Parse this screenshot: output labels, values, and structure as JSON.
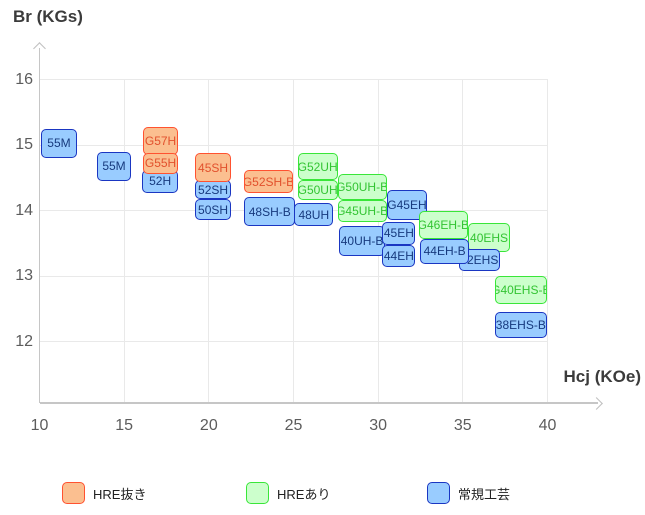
{
  "colors": {
    "hre_removed": {
      "fill": "#fbbf90",
      "border": "#ff5230",
      "text": "#e2512d"
    },
    "hre_added": {
      "fill": "#ccffcc",
      "border": "#39e639",
      "text": "#33c433"
    },
    "standard": {
      "fill": "#99ccff",
      "border": "#1a36c2",
      "text": "#173a7e"
    },
    "grid": "#e9e9e9",
    "axis": "#c6c6c6",
    "tick_text": "#5c5c5c",
    "title_text": "#3b3b3b"
  },
  "chart_data": {
    "type": "scatter",
    "title": "",
    "xlabel": "Hcj (KOe)",
    "ylabel": "Br (KGs)",
    "xlim": [
      10,
      43
    ],
    "ylim": [
      11,
      16.5
    ],
    "x_ticks": [
      10,
      15,
      20,
      25,
      30,
      35,
      40
    ],
    "y_ticks": [
      16,
      15,
      14,
      13,
      12
    ],
    "grid": true,
    "legend_position": "bottom",
    "legend": [
      {
        "group": "hre_removed",
        "label": "HRE抜き"
      },
      {
        "group": "hre_added",
        "label": "HREあり"
      },
      {
        "group": "standard",
        "label": "常規工芸"
      }
    ],
    "items": [
      {
        "label": "55M",
        "group": "standard",
        "hcj": [
          10.1,
          12.2
        ],
        "br": [
          14.8,
          15.25
        ]
      },
      {
        "label": "55M",
        "group": "standard",
        "hcj": [
          13.4,
          15.4
        ],
        "br": [
          14.45,
          14.9
        ]
      },
      {
        "label": "G57H",
        "group": "hre_removed",
        "hcj": [
          16.1,
          18.2
        ],
        "br": [
          14.85,
          15.28
        ]
      },
      {
        "label": "52H",
        "group": "standard",
        "hcj": [
          16.05,
          18.2
        ],
        "br": [
          14.27,
          14.62
        ]
      },
      {
        "label": "G55H",
        "group": "hre_removed",
        "hcj": [
          16.1,
          18.2
        ],
        "br": [
          14.56,
          14.88
        ]
      },
      {
        "label": "52SH",
        "group": "standard",
        "hcj": [
          19.2,
          21.3
        ],
        "br": [
          14.18,
          14.46
        ]
      },
      {
        "label": "50SH",
        "group": "standard",
        "hcj": [
          19.2,
          21.3
        ],
        "br": [
          13.86,
          14.17
        ]
      },
      {
        "label": "45SH",
        "group": "hre_removed",
        "hcj": [
          19.2,
          21.3
        ],
        "br": [
          14.43,
          14.88
        ]
      },
      {
        "label": "48SH-B",
        "group": "standard",
        "hcj": [
          22.1,
          25.1
        ],
        "br": [
          13.76,
          14.2
        ]
      },
      {
        "label": "G52SH-B",
        "group": "hre_removed",
        "hcj": [
          22.05,
          25.0
        ],
        "br": [
          14.26,
          14.62
        ]
      },
      {
        "label": "48UH",
        "group": "standard",
        "hcj": [
          25.05,
          27.35
        ],
        "br": [
          13.76,
          14.11
        ]
      },
      {
        "label": "G52UH",
        "group": "hre_added",
        "hcj": [
          25.25,
          27.6
        ],
        "br": [
          14.46,
          14.88
        ]
      },
      {
        "label": "G50UH",
        "group": "hre_added",
        "hcj": [
          25.25,
          27.6
        ],
        "br": [
          14.16,
          14.46
        ]
      },
      {
        "label": "G50UH-B",
        "group": "hre_added",
        "hcj": [
          27.6,
          30.5
        ],
        "br": [
          14.16,
          14.55
        ]
      },
      {
        "label": "G45UH-B",
        "group": "hre_added",
        "hcj": [
          27.6,
          30.5
        ],
        "br": [
          13.82,
          14.16
        ]
      },
      {
        "label": "40UH-B",
        "group": "standard",
        "hcj": [
          27.7,
          30.4
        ],
        "br": [
          13.31,
          13.77
        ]
      },
      {
        "label": "G45EH",
        "group": "standard",
        "hcj": [
          30.5,
          32.9
        ],
        "br": [
          13.86,
          14.32
        ]
      },
      {
        "label": "45EH",
        "group": "standard",
        "hcj": [
          30.25,
          32.2
        ],
        "br": [
          13.47,
          13.83
        ]
      },
      {
        "label": "44EH",
        "group": "standard",
        "hcj": [
          30.25,
          32.2
        ],
        "br": [
          13.13,
          13.47
        ]
      },
      {
        "label": "G46EH-B",
        "group": "hre_added",
        "hcj": [
          32.4,
          35.3
        ],
        "br": [
          13.56,
          14.0
        ]
      },
      {
        "label": "40EHS",
        "group": "hre_added",
        "hcj": [
          35.3,
          37.8
        ],
        "br": [
          13.36,
          13.81
        ]
      },
      {
        "label": "42EHS",
        "group": "standard",
        "hcj": [
          34.75,
          37.2
        ],
        "br": [
          13.07,
          13.41
        ]
      },
      {
        "label": "44EH-B",
        "group": "standard",
        "hcj": [
          32.5,
          35.35
        ],
        "br": [
          13.19,
          13.56
        ]
      },
      {
        "label": "G40EHS-B",
        "group": "hre_added",
        "hcj": [
          36.9,
          39.95
        ],
        "br": [
          12.58,
          13.0
        ]
      },
      {
        "label": "38EHS-B",
        "group": "standard",
        "hcj": [
          36.9,
          39.95
        ],
        "br": [
          12.05,
          12.45
        ]
      }
    ]
  }
}
